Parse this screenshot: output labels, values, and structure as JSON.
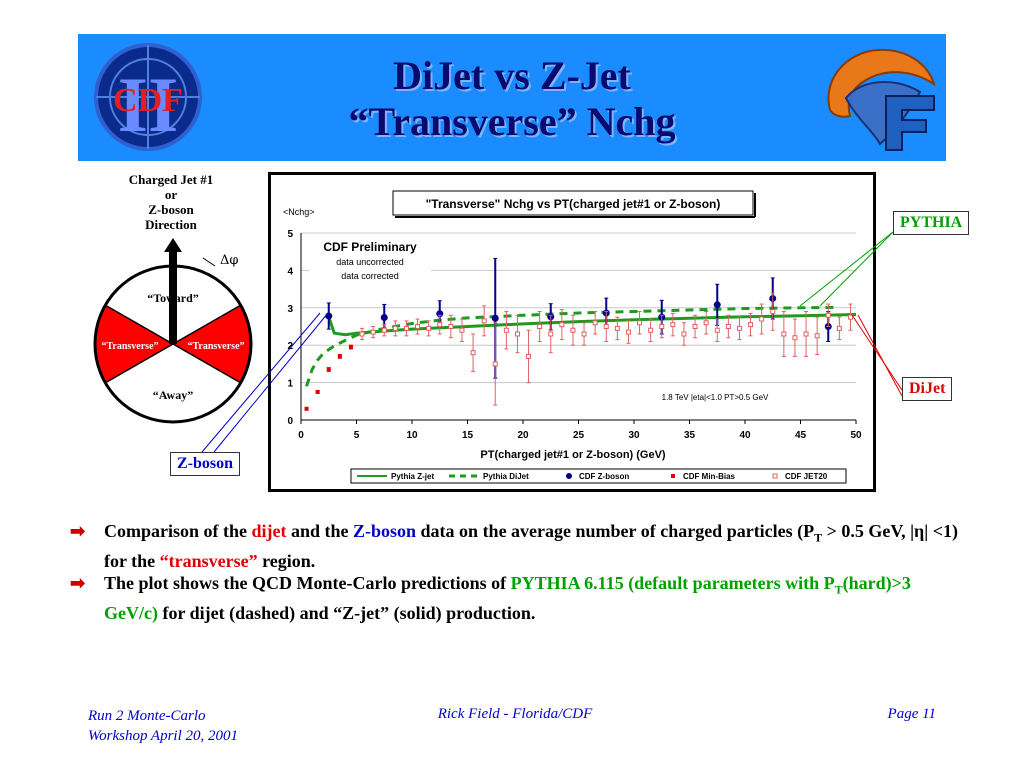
{
  "header": {
    "title_line1": "DiJet vs Z-Jet",
    "title_line2": "“Transverse” Nchg",
    "left_logo_text": "CDF",
    "left_logo_numeral": "II"
  },
  "diagram": {
    "direction_label_1": "Charged Jet #1",
    "direction_label_2": "or",
    "direction_label_3": "Z-boson",
    "direction_label_4": "Direction",
    "delta_phi": "Δφ",
    "toward": "“Toward”",
    "transverse_left": "“Transverse”",
    "transverse_right": "“Transverse”",
    "away": "“Away”"
  },
  "callouts": {
    "pythia": "PYTHIA",
    "dijet": "DiJet",
    "zboson": "Z-boson"
  },
  "chart_data": {
    "type": "scatter",
    "title": "\"Transverse\" Nchg vs PT(charged jet#1 or Z-boson)",
    "ylabel": "<Nchg>",
    "xlabel": "PT(charged jet#1 or Z-boson)  (GeV)",
    "xlim": [
      0,
      50
    ],
    "ylim": [
      0,
      5
    ],
    "xticks": [
      0,
      5,
      10,
      15,
      20,
      25,
      30,
      35,
      40,
      45,
      50
    ],
    "yticks": [
      0,
      1,
      2,
      3,
      4,
      5
    ],
    "grid": "horizontal",
    "legend_position": "bottom",
    "annotations": {
      "prelim": "CDF Preliminary",
      "uncorrected": "data uncorrected",
      "corrected": "data corrected",
      "cuts": "1.8 TeV |eta|<1.0 PT>0.5 GeV"
    },
    "colors": {
      "pythia": "#1f9a1f",
      "zboson": "#00008b",
      "minbias": "#e00000",
      "jet20": "#e06060"
    },
    "series": [
      {
        "name": "Pythia Z-jet",
        "style": "solid-line",
        "x": [
          2.5,
          3,
          4,
          5,
          7.5,
          10,
          15,
          20,
          25,
          30,
          35,
          40,
          45,
          50
        ],
        "y": [
          2.75,
          2.32,
          2.28,
          2.32,
          2.38,
          2.43,
          2.5,
          2.57,
          2.63,
          2.68,
          2.72,
          2.76,
          2.79,
          2.82
        ]
      },
      {
        "name": "Pythia DiJet",
        "style": "dashed-line",
        "x": [
          0.5,
          1,
          1.5,
          2,
          3,
          4,
          5,
          7.5,
          10,
          12.5,
          15,
          20,
          25,
          30,
          35,
          40,
          45,
          48
        ],
        "y": [
          0.9,
          1.35,
          1.6,
          1.78,
          1.98,
          2.13,
          2.27,
          2.45,
          2.58,
          2.67,
          2.73,
          2.8,
          2.86,
          2.9,
          2.94,
          2.98,
          3.0,
          3.01
        ]
      },
      {
        "name": "CDF Z-boson",
        "style": "filled-circle",
        "x": [
          2.5,
          7.5,
          12.5,
          17.5,
          22.5,
          27.5,
          32.5,
          37.5,
          42.5,
          47.5
        ],
        "y": [
          2.78,
          2.74,
          2.84,
          2.72,
          2.76,
          2.86,
          2.75,
          3.08,
          3.25,
          2.5
        ],
        "err": [
          0.35,
          0.35,
          0.35,
          1.6,
          0.35,
          0.4,
          0.45,
          0.55,
          0.55,
          0.4
        ]
      },
      {
        "name": "CDF Min-Bias",
        "style": "filled-square",
        "x": [
          0.5,
          1.5,
          2.5,
          3.5,
          4.5
        ],
        "y": [
          0.3,
          0.75,
          1.35,
          1.7,
          1.95
        ],
        "err": [
          0.03,
          0.03,
          0.05,
          0.05,
          0.05
        ]
      },
      {
        "name": "CDF JET20",
        "style": "open-square",
        "x": [
          5.5,
          6.5,
          7.5,
          8.5,
          9.5,
          10.5,
          11.5,
          12.5,
          13.5,
          14.5,
          15.5,
          16.5,
          17.5,
          18.5,
          19.5,
          20.5,
          21.5,
          22.5,
          23.5,
          24.5,
          25.5,
          26.5,
          27.5,
          28.5,
          29.5,
          30.5,
          31.5,
          32.5,
          33.5,
          34.5,
          35.5,
          36.5,
          37.5,
          38.5,
          39.5,
          40.5,
          41.5,
          42.5,
          43.5,
          44.5,
          45.5,
          46.5,
          47.5,
          48.5,
          49.5
        ],
        "y": [
          2.3,
          2.35,
          2.4,
          2.45,
          2.45,
          2.5,
          2.45,
          2.55,
          2.5,
          2.4,
          1.8,
          2.65,
          1.5,
          2.4,
          2.3,
          1.7,
          2.5,
          2.3,
          2.55,
          2.4,
          2.3,
          2.6,
          2.5,
          2.45,
          2.35,
          2.6,
          2.4,
          2.5,
          2.55,
          2.3,
          2.5,
          2.6,
          2.4,
          2.5,
          2.45,
          2.55,
          2.7,
          2.9,
          2.3,
          2.2,
          2.3,
          2.25,
          2.8,
          2.45,
          2.75
        ],
        "err": [
          0.15,
          0.15,
          0.15,
          0.2,
          0.2,
          0.2,
          0.2,
          0.25,
          0.3,
          0.3,
          0.5,
          0.4,
          1.1,
          0.5,
          0.5,
          0.7,
          0.4,
          0.5,
          0.4,
          0.4,
          0.3,
          0.3,
          0.4,
          0.3,
          0.3,
          0.3,
          0.3,
          0.3,
          0.3,
          0.3,
          0.3,
          0.3,
          0.3,
          0.3,
          0.3,
          0.3,
          0.4,
          0.5,
          0.6,
          0.5,
          0.6,
          0.5,
          0.3,
          0.3,
          0.35
        ]
      }
    ]
  },
  "bullets": [
    {
      "parts": [
        {
          "text": "Comparison of the ",
          "color": "black"
        },
        {
          "text": "dijet",
          "color": "red"
        },
        {
          "text": " and the ",
          "color": "black"
        },
        {
          "text": "Z-boson",
          "color": "blue"
        },
        {
          "text": " data on the average number of  charged particles (P",
          "color": "black"
        },
        {
          "text": "T",
          "color": "black",
          "sub": true
        },
        {
          "text": " > 0.5 GeV, |η| <1) for the ",
          "color": "black"
        },
        {
          "text": "“transverse”",
          "color": "red"
        },
        {
          "text": " region.",
          "color": "black"
        }
      ]
    },
    {
      "parts": [
        {
          "text": "The plot shows the QCD Monte-Carlo predictions of ",
          "color": "black"
        },
        {
          "text": "PYTHIA 6.115 (default parameters with P",
          "color": "green"
        },
        {
          "text": "T",
          "color": "green",
          "sub": true
        },
        {
          "text": "(hard)>3 GeV/c)",
          "color": "green"
        },
        {
          "text": " for dijet (dashed) and “Z-jet” (solid) production.",
          "color": "black"
        }
      ]
    }
  ],
  "footer": {
    "left_line1": "Run 2 Monte-Carlo",
    "left_line2": "Workshop April 20, 2001",
    "center": "Rick Field - Florida/CDF",
    "right": "Page 11"
  }
}
